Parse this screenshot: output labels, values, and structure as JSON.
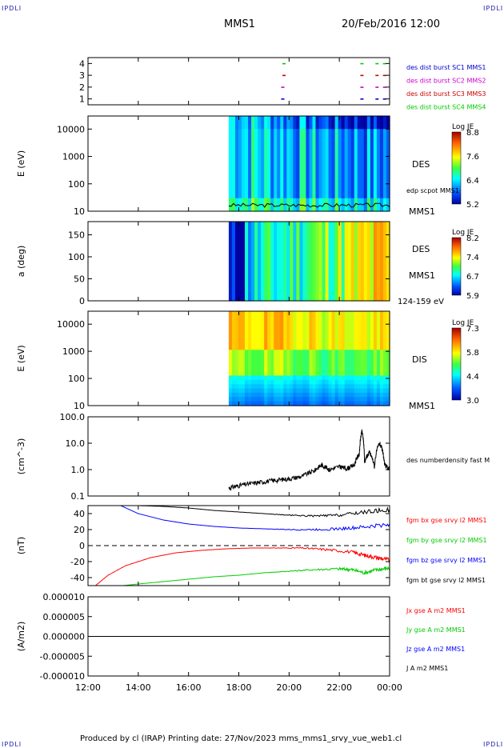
{
  "header": {
    "corner_label": "IPDLI",
    "spacecraft": "MMS1",
    "datetime": "20/Feb/2016 12:00"
  },
  "footer": {
    "text": "Produced by cl (IRAP)   Printing date: 27/Nov/2023   mms_mms1_srvy_vue_web1.cl"
  },
  "colors": {
    "bx": "#ff0000",
    "by": "#00cc00",
    "bz": "#0000ff",
    "bt": "#000000",
    "sc1": "#0000cc",
    "sc2": "#cc00cc",
    "sc3": "#cc0000",
    "sc4": "#00cc00"
  },
  "chart_data": [
    {
      "type": "scatter",
      "id": "burst",
      "ylabel": "",
      "ylim": [
        0.5,
        4.5
      ],
      "yticks": [
        1,
        2,
        3,
        4
      ],
      "legend": [
        {
          "label": "des dist burst SC1 MMS1",
          "color": "#0000cc"
        },
        {
          "label": "des dist burst SC2 MMS2",
          "color": "#cc00cc"
        },
        {
          "label": "des dist burst SC3 MMS3",
          "color": "#cc0000"
        },
        {
          "label": "des dist burst SC4 MMS4",
          "color": "#00cc00"
        }
      ],
      "series": [
        {
          "sc": 1,
          "hours": [
            19.75,
            22.9,
            23.5,
            23.8
          ]
        },
        {
          "sc": 2,
          "hours": [
            19.75,
            22.9,
            23.5,
            23.8
          ]
        },
        {
          "sc": 3,
          "hours": [
            19.8,
            22.9,
            23.5,
            23.8
          ]
        },
        {
          "sc": 4,
          "hours": [
            19.8,
            22.9,
            23.5,
            23.8
          ]
        }
      ]
    },
    {
      "type": "heatmap",
      "id": "des_energy",
      "ylabel": "E (eV)",
      "scale": "log",
      "ylim": [
        10,
        30000
      ],
      "yticks": [
        "10",
        "100",
        "1000",
        "10000"
      ],
      "data_start_hour": 17.6,
      "colorbar": {
        "title": "Log JE",
        "ticks": [
          "8.8",
          "7.6",
          "6.4",
          "5.2"
        ]
      },
      "right_label": "DES",
      "overlay_label": "edp scpot MMS1",
      "bottom_label": "MMS1"
    },
    {
      "type": "heatmap",
      "id": "des_pitch",
      "ylabel": "a (deg)",
      "ylim": [
        0,
        180
      ],
      "yticks": [
        "0",
        "50",
        "100",
        "150"
      ],
      "data_start_hour": 17.6,
      "colorbar": {
        "title": "Log JE",
        "ticks": [
          "8.2",
          "7.4",
          "6.7",
          "5.9"
        ]
      },
      "right_label": "DES",
      "right_label2": "MMS1",
      "bottom_label": "124-159 eV"
    },
    {
      "type": "heatmap",
      "id": "dis_energy",
      "ylabel": "E (eV)",
      "scale": "log",
      "ylim": [
        10,
        30000
      ],
      "yticks": [
        "10",
        "100",
        "1000",
        "10000"
      ],
      "data_start_hour": 17.6,
      "colorbar": {
        "title": "Log JE",
        "ticks": [
          "7.3",
          "5.8",
          "4.4",
          "3.0"
        ]
      },
      "right_label": "DIS",
      "bottom_label": "MMS1"
    },
    {
      "type": "line",
      "id": "density",
      "ylabel": "(cm^-3)",
      "scale": "log",
      "ylim": [
        0.1,
        100
      ],
      "yticks": [
        "0.1",
        "1.0",
        "10.0",
        "100.0"
      ],
      "legend": [
        {
          "label": "des numberdensity fast M",
          "color": "#000000"
        }
      ],
      "series": [
        {
          "name": "des numberdensity fast M",
          "color": "#000000",
          "x": [
            17.6,
            18.0,
            18.5,
            19.0,
            19.5,
            20.0,
            20.5,
            21.0,
            21.3,
            21.6,
            22.0,
            22.3,
            22.6,
            22.8,
            22.9,
            23.0,
            23.2,
            23.4,
            23.6,
            23.8,
            24.0
          ],
          "y": [
            0.2,
            0.25,
            0.3,
            0.35,
            0.4,
            0.45,
            0.55,
            0.9,
            1.5,
            1.0,
            1.3,
            1.1,
            1.5,
            4.0,
            28.0,
            2.0,
            4.5,
            1.2,
            10.0,
            1.5,
            1.0
          ]
        }
      ]
    },
    {
      "type": "line",
      "id": "fgm",
      "ylabel": "(nT)",
      "ylim": [
        -50,
        50
      ],
      "yticks": [
        "-40",
        "-20",
        "0",
        "20",
        "40"
      ],
      "legend": [
        {
          "label": "fgm bx gse srvy l2 MMS1",
          "color": "#ff0000"
        },
        {
          "label": "fgm by gse srvy l2 MMS1",
          "color": "#00cc00"
        },
        {
          "label": "fgm bz gse srvy l2 MMS1",
          "color": "#0000ff"
        },
        {
          "label": "fgm bt gse srvy l2 MMS1",
          "color": "#000000"
        }
      ],
      "series": [
        {
          "key": "bx",
          "color": "#ff0000",
          "x": [
            12.3,
            12.8,
            13.5,
            14.5,
            15.5,
            16.5,
            17.5,
            18.5,
            19.5,
            20.5,
            21.5,
            22.5,
            23.0,
            23.5,
            24.0
          ],
          "y": [
            -50,
            -37,
            -25,
            -15,
            -9,
            -6,
            -4,
            -3,
            -3,
            -3,
            -5,
            -8,
            -12,
            -15,
            -18
          ]
        },
        {
          "key": "by",
          "color": "#00cc00",
          "x": [
            13.4,
            14.0,
            15.0,
            16.0,
            17.0,
            18.0,
            19.0,
            20.0,
            21.0,
            22.0,
            22.5,
            23.0,
            23.5,
            24.0
          ],
          "y": [
            -50,
            -48,
            -45,
            -42,
            -39,
            -37,
            -34,
            -32,
            -30,
            -29,
            -30,
            -34,
            -30,
            -28
          ]
        },
        {
          "key": "bz",
          "color": "#0000ff",
          "x": [
            13.3,
            14.0,
            15.0,
            16.0,
            17.0,
            18.0,
            19.0,
            20.0,
            21.0,
            22.0,
            23.0,
            24.0
          ],
          "y": [
            50,
            40,
            32,
            27,
            24,
            22,
            21,
            20,
            20,
            21,
            23,
            27
          ]
        },
        {
          "key": "bt",
          "color": "#000000",
          "x": [
            13.3,
            14.0,
            15.0,
            16.0,
            17.0,
            18.0,
            19.0,
            20.0,
            21.0,
            22.0,
            23.0,
            24.0
          ],
          "y": [
            50,
            50,
            49,
            47,
            44,
            42,
            40,
            38,
            37,
            38,
            42,
            45
          ]
        }
      ]
    },
    {
      "type": "line",
      "id": "current",
      "ylabel": "(A/m2)",
      "ylim": [
        -1e-05,
        1e-05
      ],
      "yticks": [
        "-0.000010",
        "-0.000005",
        "0.000000",
        "0.000005",
        "0.000010"
      ],
      "legend": [
        {
          "label": "Jx gse A m2 MMS1",
          "color": "#ff0000"
        },
        {
          "label": "Jy gse A m2 MMS1",
          "color": "#00cc00"
        },
        {
          "label": "Jz gse A m2 MMS1",
          "color": "#0000ff"
        },
        {
          "label": "J A m2 MMS1",
          "color": "#000000"
        }
      ],
      "series": [
        {
          "color": "#000000",
          "x": [
            12.0,
            24.0
          ],
          "y": [
            0.0,
            0.0
          ]
        }
      ]
    }
  ],
  "xaxis": {
    "range_hours": [
      12,
      24
    ],
    "ticks": [
      12,
      14,
      16,
      18,
      20,
      22,
      24
    ],
    "tick_labels": [
      "12:00",
      "14:00",
      "16:00",
      "18:00",
      "20:00",
      "22:00",
      "00:00"
    ]
  }
}
